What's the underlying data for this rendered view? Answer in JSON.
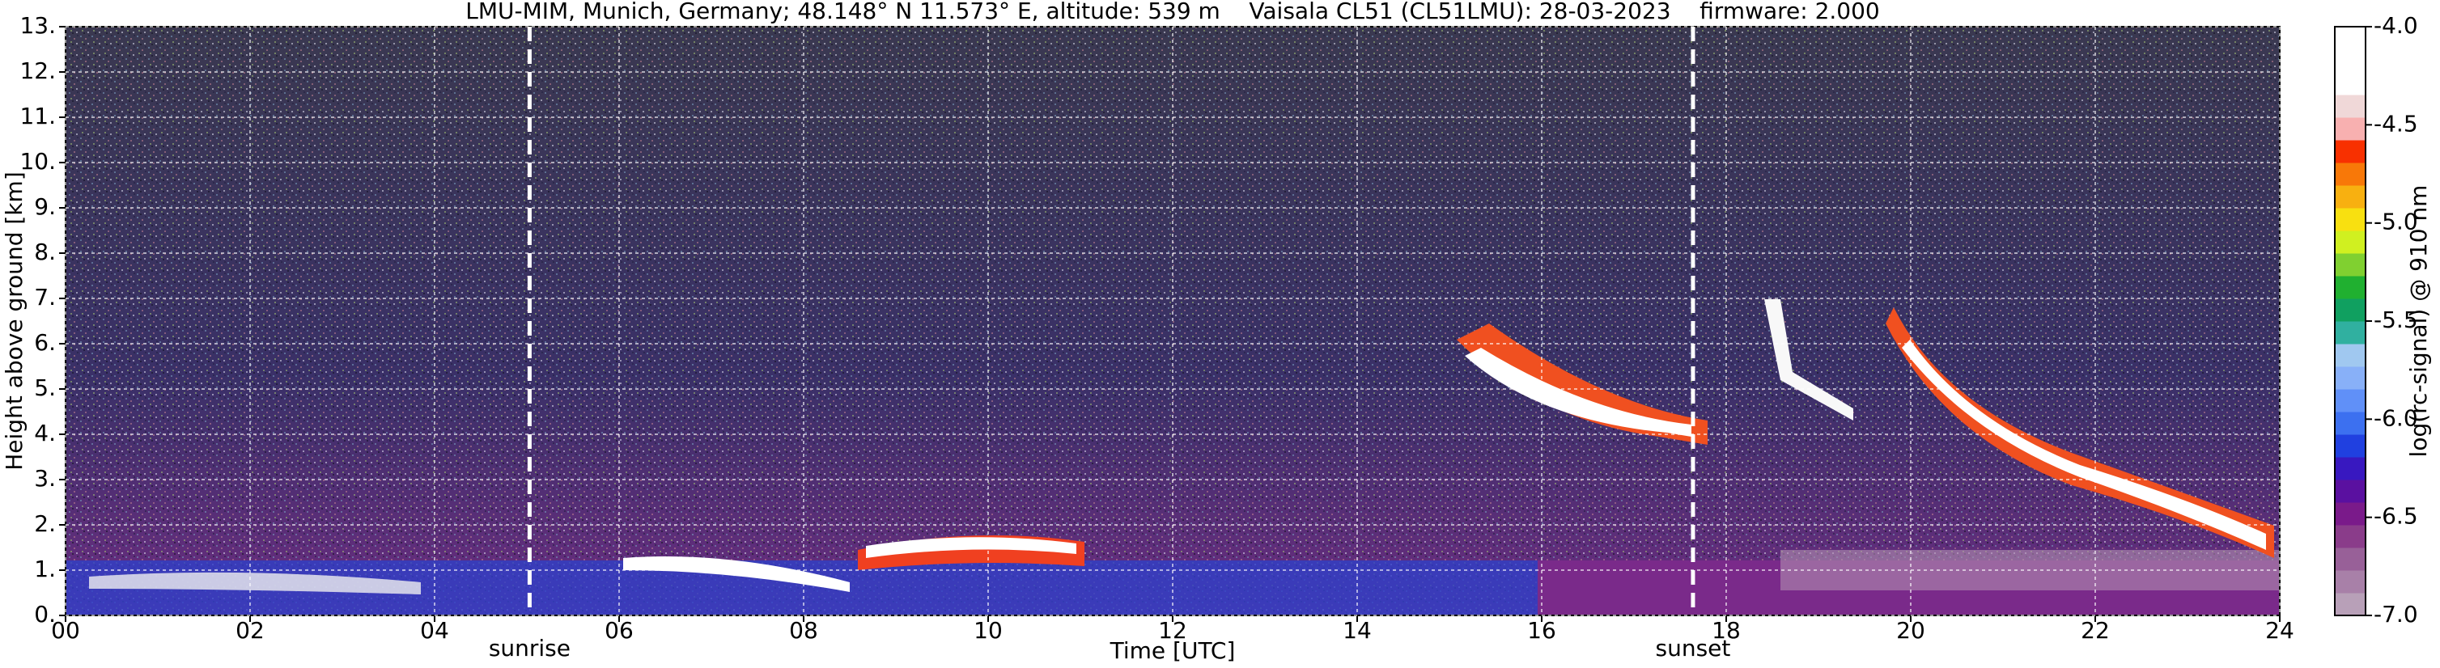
{
  "chart_data": {
    "type": "heatmap",
    "title": "LMU-MIM, Munich, Germany; 48.148° N 11.573° E, altitude: 539 m    Vaisala CL51 (CL51LMU): 28-03-2023    firmware: 2.000",
    "xlabel": "Time [UTC]",
    "ylabel": "Height above ground [km]",
    "xlim": [
      0,
      24
    ],
    "ylim": [
      0,
      13
    ],
    "xticks": [
      {
        "value": 0,
        "label": "00"
      },
      {
        "value": 2,
        "label": "02"
      },
      {
        "value": 4,
        "label": "04"
      },
      {
        "value": 6,
        "label": "06"
      },
      {
        "value": 8,
        "label": "08"
      },
      {
        "value": 10,
        "label": "10"
      },
      {
        "value": 12,
        "label": "12"
      },
      {
        "value": 14,
        "label": "14"
      },
      {
        "value": 16,
        "label": "16"
      },
      {
        "value": 18,
        "label": "18"
      },
      {
        "value": 20,
        "label": "20"
      },
      {
        "value": 22,
        "label": "22"
      },
      {
        "value": 24,
        "label": "24"
      }
    ],
    "yticks": [
      {
        "value": 0,
        "label": "0."
      },
      {
        "value": 1,
        "label": "1."
      },
      {
        "value": 2,
        "label": "2."
      },
      {
        "value": 3,
        "label": "3."
      },
      {
        "value": 4,
        "label": "4."
      },
      {
        "value": 5,
        "label": "5."
      },
      {
        "value": 6,
        "label": "6."
      },
      {
        "value": 7,
        "label": "7."
      },
      {
        "value": 8,
        "label": "8."
      },
      {
        "value": 9,
        "label": "9."
      },
      {
        "value": 10,
        "label": "10."
      },
      {
        "value": 11,
        "label": "11."
      },
      {
        "value": 12,
        "label": "12."
      },
      {
        "value": 13,
        "label": "13."
      }
    ],
    "grid": true,
    "annotations": [
      {
        "label": "sunrise",
        "x": 5.03
      },
      {
        "label": "sunset",
        "x": 17.64
      }
    ],
    "colorbar": {
      "label": "log(rc-signal) @ 910 nm",
      "lim": [
        -7,
        -4
      ],
      "ticks": [
        {
          "value": -7,
          "label": "-7.0"
        },
        -6.5,
        {
          "value": -6,
          "label": "-6.0"
        },
        -5.5,
        {
          "value": -5,
          "label": "-5.0"
        },
        -4.5,
        {
          "value": -4,
          "label": "-4.0"
        }
      ],
      "colors": [
        "#b8a0b8",
        "#a880a8",
        "#986098",
        "#8a3c8a",
        "#7a1a8a",
        "#5a10a0",
        "#3818c0",
        "#2040e0",
        "#3c70f0",
        "#6090f8",
        "#88b0f8",
        "#a0c8f0",
        "#30b0a0",
        "#10a060",
        "#20b030",
        "#80d030",
        "#d0f020",
        "#f8e010",
        "#f8b010",
        "#f87808",
        "#f83000",
        "#f8b0b0",
        "#f0d8d8",
        "#ffffff",
        "#ffffff",
        "#ffffff"
      ]
    }
  }
}
